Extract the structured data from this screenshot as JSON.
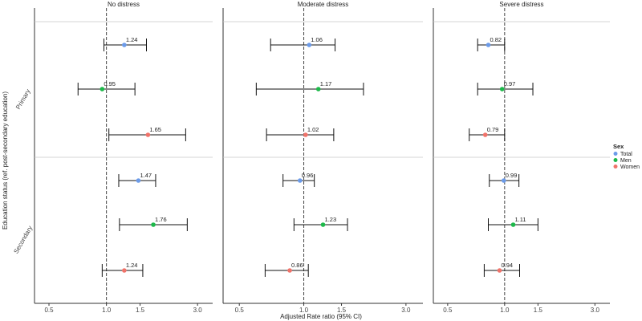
{
  "chart_data": {
    "type": "forest",
    "x_scale": "log",
    "xlabel": "Adjusted Rate ratio (95% CI)",
    "ylabel": "Education status (ref. post-secondary education)",
    "xticks": [
      0.5,
      1.0,
      1.5,
      3.0
    ],
    "xtick_labels": [
      "0.5",
      "1.0",
      "1.5",
      "3.0"
    ],
    "reference_line": 1.0,
    "facets": [
      "No distress",
      "Moderate distress",
      "Severe distress"
    ],
    "groups": [
      "Primary",
      "Secondary"
    ],
    "legend": {
      "title": "Sex",
      "placement": "right",
      "entries": [
        {
          "name": "Total",
          "color": "#6C9BE9"
        },
        {
          "name": "Men",
          "color": "#1DB94A"
        },
        {
          "name": "Women",
          "color": "#F0736A"
        }
      ]
    },
    "series_colors": {
      "Total": "#6C9BE9",
      "Men": "#1DB94A",
      "Women": "#F0736A"
    },
    "points": [
      {
        "facet": "No distress",
        "group": "Primary",
        "sex": "Total",
        "est": 1.24,
        "label": "1.24",
        "lo": 0.97,
        "hi": 1.62
      },
      {
        "facet": "No distress",
        "group": "Primary",
        "sex": "Men",
        "est": 0.95,
        "label": "0.95",
        "lo": 0.71,
        "hi": 1.41
      },
      {
        "facet": "No distress",
        "group": "Primary",
        "sex": "Women",
        "est": 1.65,
        "label": "1.65",
        "lo": 1.03,
        "hi": 2.6
      },
      {
        "facet": "No distress",
        "group": "Secondary",
        "sex": "Total",
        "est": 1.47,
        "label": "1.47",
        "lo": 1.16,
        "hi": 1.81
      },
      {
        "facet": "No distress",
        "group": "Secondary",
        "sex": "Men",
        "est": 1.76,
        "label": "1.76",
        "lo": 1.17,
        "hi": 2.65
      },
      {
        "facet": "No distress",
        "group": "Secondary",
        "sex": "Women",
        "est": 1.24,
        "label": "1.24",
        "lo": 0.95,
        "hi": 1.55
      },
      {
        "facet": "Moderate distress",
        "group": "Primary",
        "sex": "Total",
        "est": 1.06,
        "label": "1.06",
        "lo": 0.7,
        "hi": 1.4
      },
      {
        "facet": "Moderate distress",
        "group": "Primary",
        "sex": "Men",
        "est": 1.17,
        "label": "1.17",
        "lo": 0.6,
        "hi": 1.9
      },
      {
        "facet": "Moderate distress",
        "group": "Primary",
        "sex": "Women",
        "est": 1.02,
        "label": "1.02",
        "lo": 0.67,
        "hi": 1.38
      },
      {
        "facet": "Moderate distress",
        "group": "Secondary",
        "sex": "Total",
        "est": 0.96,
        "label": "0.96",
        "lo": 0.8,
        "hi": 1.12
      },
      {
        "facet": "Moderate distress",
        "group": "Secondary",
        "sex": "Men",
        "est": 1.23,
        "label": "1.23",
        "lo": 0.9,
        "hi": 1.6
      },
      {
        "facet": "Moderate distress",
        "group": "Secondary",
        "sex": "Women",
        "est": 0.86,
        "label": "0.86",
        "lo": 0.66,
        "hi": 1.05
      },
      {
        "facet": "Severe distress",
        "group": "Primary",
        "sex": "Total",
        "est": 0.82,
        "label": "0.82",
        "lo": 0.72,
        "hi": 1.0
      },
      {
        "facet": "Severe distress",
        "group": "Primary",
        "sex": "Men",
        "est": 0.97,
        "label": "0.97",
        "lo": 0.72,
        "hi": 1.41
      },
      {
        "facet": "Severe distress",
        "group": "Primary",
        "sex": "Women",
        "est": 0.79,
        "label": "0.79",
        "lo": 0.65,
        "hi": 1.0
      },
      {
        "facet": "Severe distress",
        "group": "Secondary",
        "sex": "Total",
        "est": 0.99,
        "label": "0.99",
        "lo": 0.83,
        "hi": 1.19
      },
      {
        "facet": "Severe distress",
        "group": "Secondary",
        "sex": "Men",
        "est": 1.11,
        "label": "1.11",
        "lo": 0.82,
        "hi": 1.5
      },
      {
        "facet": "Severe distress",
        "group": "Secondary",
        "sex": "Women",
        "est": 0.94,
        "label": "0.94",
        "lo": 0.78,
        "hi": 1.2
      }
    ]
  }
}
